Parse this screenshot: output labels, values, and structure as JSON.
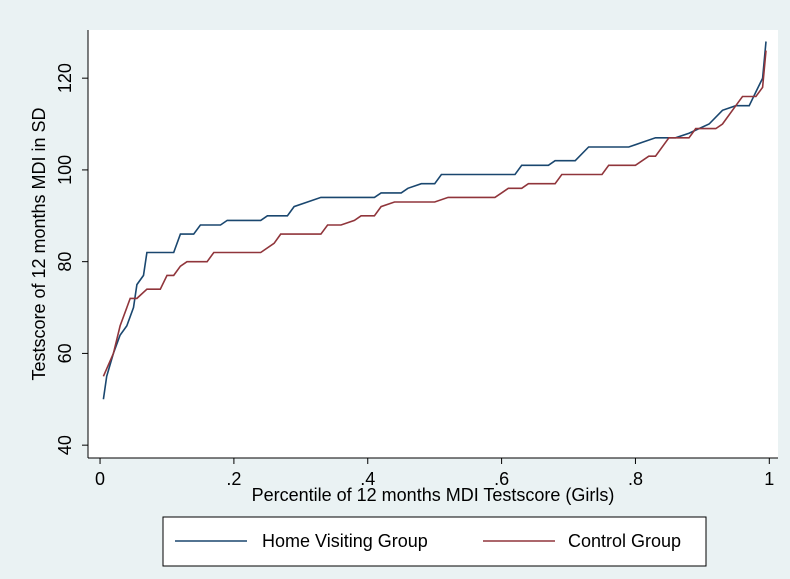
{
  "chart_data": {
    "type": "line",
    "x_label": "Percentile of 12 months MDI Testscore (Girls)",
    "y_label": "Testscore of 12 months MDI in SD",
    "xlim": [
      -0.018,
      1.013
    ],
    "ylim": [
      37.2,
      130.5
    ],
    "xticks": [
      0,
      {
        "value": 0.2,
        "label": ".2"
      },
      {
        "value": 0.4,
        "label": ".4"
      },
      {
        "value": 0.6,
        "label": ".6"
      },
      {
        "value": 0.8,
        "label": ".8"
      },
      1
    ],
    "yticks": [
      40,
      60,
      80,
      100,
      120
    ],
    "grid": false,
    "legend": "bottom",
    "series": [
      {
        "name": "Home Visiting Group",
        "color": "#1a476f",
        "x": [
          0.005,
          0.01,
          0.02,
          0.03,
          0.04,
          0.05,
          0.055,
          0.065,
          0.07,
          0.11,
          0.12,
          0.14,
          0.15,
          0.18,
          0.19,
          0.24,
          0.25,
          0.28,
          0.29,
          0.31,
          0.33,
          0.41,
          0.42,
          0.45,
          0.46,
          0.48,
          0.5,
          0.51,
          0.62,
          0.63,
          0.67,
          0.68,
          0.71,
          0.73,
          0.79,
          0.81,
          0.83,
          0.86,
          0.88,
          0.91,
          0.93,
          0.95,
          0.97,
          0.98,
          0.99,
          0.995
        ],
        "values": [
          50,
          55,
          60,
          64,
          66,
          70,
          75,
          77,
          82,
          82,
          86,
          86,
          88,
          88,
          89,
          89,
          90,
          90,
          92,
          93,
          94,
          94,
          95,
          95,
          96,
          97,
          97,
          99,
          99,
          101,
          101,
          102,
          102,
          105,
          105,
          106,
          107,
          107,
          108,
          110,
          113,
          114,
          114,
          117,
          120,
          128
        ]
      },
      {
        "name": "Control Group",
        "color": "#90353b",
        "x": [
          0.005,
          0.02,
          0.03,
          0.045,
          0.055,
          0.07,
          0.09,
          0.1,
          0.11,
          0.12,
          0.13,
          0.16,
          0.17,
          0.24,
          0.26,
          0.27,
          0.33,
          0.34,
          0.36,
          0.38,
          0.39,
          0.41,
          0.42,
          0.44,
          0.5,
          0.52,
          0.59,
          0.6,
          0.61,
          0.63,
          0.64,
          0.68,
          0.69,
          0.75,
          0.76,
          0.8,
          0.82,
          0.83,
          0.85,
          0.88,
          0.89,
          0.92,
          0.93,
          0.95,
          0.96,
          0.98,
          0.99,
          0.995
        ],
        "values": [
          55,
          60,
          66,
          72,
          72,
          74,
          74,
          77,
          77,
          79,
          80,
          80,
          82,
          82,
          84,
          86,
          86,
          88,
          88,
          89,
          90,
          90,
          92,
          93,
          93,
          94,
          94,
          95,
          96,
          96,
          97,
          97,
          99,
          99,
          101,
          101,
          103,
          103,
          107,
          107,
          109,
          109,
          110,
          114,
          116,
          116,
          118,
          126
        ]
      }
    ]
  }
}
